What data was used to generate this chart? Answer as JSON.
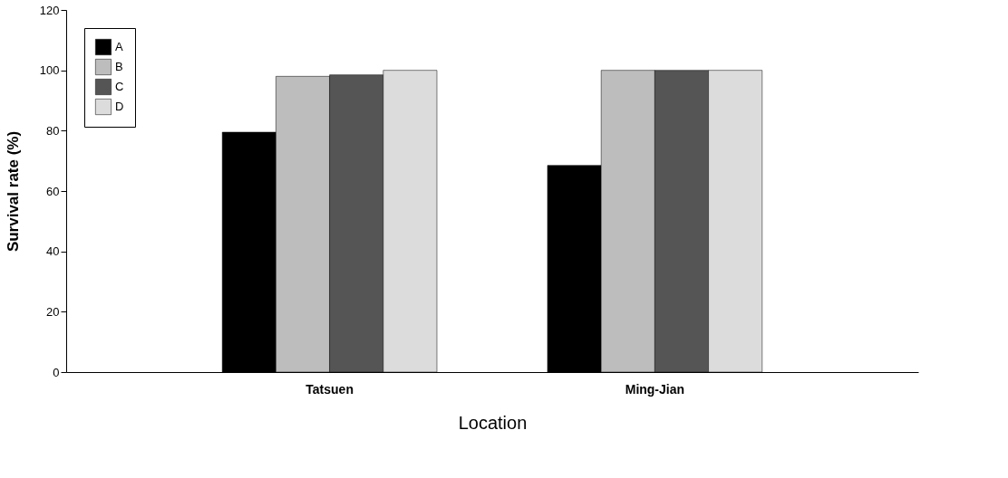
{
  "chart_data": {
    "type": "bar",
    "xlabel": "Location",
    "ylabel": "Survival rate (%)",
    "categories": [
      "Tatsuen",
      "Ming-Jian"
    ],
    "series": [
      {
        "name": "A",
        "color": "#000000",
        "values": [
          79.5,
          68.5
        ]
      },
      {
        "name": "B",
        "color": "#bdbdbd",
        "values": [
          98,
          100
        ]
      },
      {
        "name": "C",
        "color": "#555555",
        "values": [
          98.5,
          100
        ]
      },
      {
        "name": "D",
        "color": "#dcdcdc",
        "values": [
          100,
          100
        ]
      }
    ],
    "ylim": [
      0,
      120
    ],
    "yticks": [
      0,
      20,
      40,
      60,
      80,
      100,
      120
    ],
    "grid": false,
    "legend": "top left"
  }
}
